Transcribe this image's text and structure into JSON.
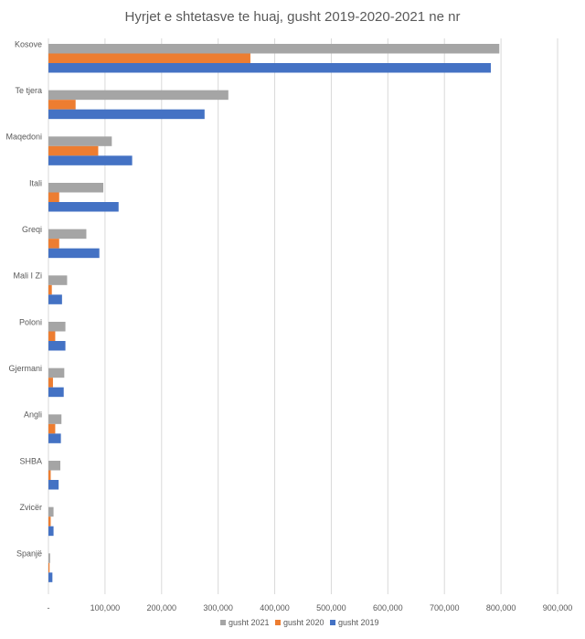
{
  "chart_data": {
    "type": "bar",
    "orientation": "horizontal",
    "title": "Hyrjet e shtetasve te huaj, gusht 2019-2020-2021 ne nr",
    "categories": [
      "Kosove",
      "Te tjera",
      "Maqedoni",
      "Itali",
      "Greqi",
      "Mali I Zi",
      "Poloni",
      "Gjermani",
      "Angli",
      "SHBA",
      "Zvicër",
      "Spanjë"
    ],
    "series": [
      {
        "name": "gusht 2021",
        "color": "#a5a5a5",
        "values": [
          797000,
          318000,
          112000,
          97000,
          67000,
          33000,
          30000,
          28000,
          23000,
          21000,
          9000,
          3000
        ]
      },
      {
        "name": "gusht 2020",
        "color": "#ed7d31",
        "values": [
          357000,
          48000,
          88000,
          19000,
          19000,
          6000,
          12000,
          8000,
          12000,
          4000,
          4000,
          2000
        ]
      },
      {
        "name": "gusht 2019",
        "color": "#4472c4",
        "values": [
          782000,
          276000,
          148000,
          124000,
          90000,
          24000,
          30000,
          27000,
          22000,
          18000,
          9000,
          7000
        ]
      }
    ],
    "xlim": [
      0,
      900000
    ],
    "xticks": [
      "-",
      "100,000",
      "200,000",
      "300,000",
      "400,000",
      "500,000",
      "600,000",
      "700,000",
      "800,000",
      "900,000"
    ],
    "grid": true,
    "legend_position": "bottom"
  }
}
